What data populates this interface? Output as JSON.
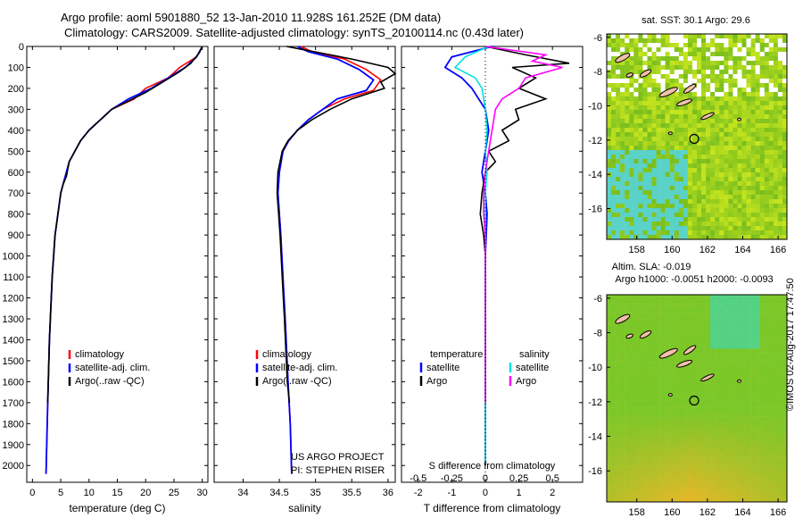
{
  "header": {
    "title_line1": "Argo profile: aoml 5901880_52 13-Jan-2010 11.928S 161.252E (DM data)",
    "title_line2": "Climatology: CARS2009. Satellite-adjusted climatology: synTS_20100114.nc (0.43d later)"
  },
  "colors": {
    "climatology": "#ff0000",
    "satellite": "#0000ff",
    "argo": "#000000",
    "sat_s": "#00e0e0",
    "argo_s": "#ff00ff"
  },
  "chart_data": [
    {
      "type": "line",
      "title": "",
      "xlabel": "temperature (deg C)",
      "ylabel": "",
      "xlim": [
        -1,
        31
      ],
      "ylim": [
        2080,
        0
      ],
      "x_ticks": [
        0,
        5,
        10,
        15,
        20,
        25,
        30
      ],
      "y_ticks": [
        0,
        100,
        200,
        300,
        400,
        500,
        600,
        700,
        800,
        900,
        1000,
        1100,
        1200,
        1300,
        1400,
        1500,
        1600,
        1700,
        1800,
        1900,
        2000
      ],
      "legend": [
        "climatology",
        "satellite-adj. clim.",
        "Argo(..raw -QC)"
      ],
      "series": [
        {
          "name": "climatology",
          "color": "#ff0000",
          "points": [
            [
              30,
              0
            ],
            [
              29,
              50
            ],
            [
              26,
              100
            ],
            [
              24,
              150
            ],
            [
              20,
              200
            ],
            [
              18,
              250
            ],
            [
              14,
              300
            ],
            [
              12,
              350
            ],
            [
              10,
              400
            ],
            [
              8.5,
              450
            ],
            [
              7.5,
              500
            ],
            [
              6.5,
              550
            ],
            [
              6,
              600
            ],
            [
              5.5,
              650
            ],
            [
              5,
              700
            ],
            [
              4.5,
              800
            ],
            [
              4,
              900
            ],
            [
              3.5,
              1100
            ],
            [
              3,
              1400
            ],
            [
              2.7,
              1700
            ],
            [
              2.4,
              2040
            ]
          ]
        },
        {
          "name": "satellite-adj. clim.",
          "color": "#0000ff",
          "points": [
            [
              30,
              0
            ],
            [
              29,
              50
            ],
            [
              27,
              100
            ],
            [
              24,
              150
            ],
            [
              21,
              200
            ],
            [
              17,
              250
            ],
            [
              14,
              300
            ],
            [
              12,
              350
            ],
            [
              10,
              400
            ],
            [
              8.5,
              450
            ],
            [
              7.5,
              500
            ],
            [
              6.5,
              550
            ],
            [
              6,
              600
            ],
            [
              5.5,
              650
            ],
            [
              5,
              700
            ],
            [
              4.5,
              800
            ],
            [
              4,
              900
            ],
            [
              3.5,
              1100
            ],
            [
              3,
              1400
            ],
            [
              2.7,
              1700
            ],
            [
              2.4,
              2040
            ]
          ]
        },
        {
          "name": "Argo(..raw -QC)",
          "color": "#000000",
          "points": [
            [
              30,
              0
            ],
            [
              29.5,
              30
            ],
            [
              28,
              80
            ],
            [
              26,
              120
            ],
            [
              23,
              170
            ],
            [
              20,
              220
            ],
            [
              17,
              260
            ],
            [
              14,
              300
            ],
            [
              12,
              350
            ],
            [
              10,
              400
            ],
            [
              8.5,
              450
            ],
            [
              7.5,
              500
            ],
            [
              6.5,
              550
            ],
            [
              6,
              620
            ],
            [
              5.4,
              660
            ],
            [
              5,
              700
            ],
            [
              4.5,
              800
            ],
            [
              4,
              900
            ],
            [
              3.5,
              1100
            ],
            [
              3,
              1400
            ],
            [
              2.7,
              1700
            ]
          ]
        }
      ]
    },
    {
      "type": "line",
      "title": "",
      "xlabel": "salinity",
      "ylabel": "",
      "xlim": [
        33.6,
        36.1
      ],
      "ylim": [
        2080,
        0
      ],
      "x_ticks": [
        34,
        34.5,
        35,
        35.5,
        36
      ],
      "legend": [
        "climatology",
        "satellite-adj. clim.",
        "Argo(..raw -QC)"
      ],
      "annotation": [
        "US ARGO PROJECT",
        "PI: STEPHEN RISER"
      ],
      "series": [
        {
          "name": "climatology",
          "color": "#ff0000",
          "points": [
            [
              34.8,
              0
            ],
            [
              34.95,
              25
            ],
            [
              35.4,
              60
            ],
            [
              35.7,
              110
            ],
            [
              35.9,
              160
            ],
            [
              35.8,
              210
            ],
            [
              35.4,
              250
            ],
            [
              35.1,
              300
            ],
            [
              34.9,
              350
            ],
            [
              34.75,
              400
            ],
            [
              34.63,
              450
            ],
            [
              34.55,
              500
            ],
            [
              34.5,
              600
            ],
            [
              34.48,
              700
            ],
            [
              34.5,
              800
            ],
            [
              34.52,
              900
            ],
            [
              34.55,
              1100
            ],
            [
              34.58,
              1300
            ],
            [
              34.62,
              1600
            ],
            [
              34.65,
              1800
            ],
            [
              34.67,
              2040
            ]
          ]
        },
        {
          "name": "satellite-adj. clim.",
          "color": "#0000ff",
          "points": [
            [
              34.75,
              0
            ],
            [
              34.9,
              25
            ],
            [
              35.3,
              60
            ],
            [
              35.6,
              110
            ],
            [
              35.8,
              160
            ],
            [
              35.7,
              210
            ],
            [
              35.3,
              250
            ],
            [
              35.1,
              300
            ],
            [
              34.9,
              350
            ],
            [
              34.75,
              400
            ],
            [
              34.63,
              450
            ],
            [
              34.55,
              500
            ],
            [
              34.5,
              600
            ],
            [
              34.48,
              700
            ],
            [
              34.5,
              800
            ],
            [
              34.52,
              900
            ],
            [
              34.55,
              1100
            ],
            [
              34.58,
              1300
            ],
            [
              34.62,
              1600
            ],
            [
              34.65,
              1800
            ],
            [
              34.67,
              2040
            ]
          ]
        },
        {
          "name": "Argo(..raw -QC)",
          "color": "#000000",
          "points": [
            [
              34.6,
              0
            ],
            [
              34.9,
              20
            ],
            [
              35.5,
              60
            ],
            [
              36,
              100
            ],
            [
              36.1,
              130
            ],
            [
              35.9,
              170
            ],
            [
              35.95,
              200
            ],
            [
              35.5,
              250
            ],
            [
              35.2,
              300
            ],
            [
              34.95,
              350
            ],
            [
              34.75,
              400
            ],
            [
              34.62,
              450
            ],
            [
              34.54,
              500
            ],
            [
              34.48,
              600
            ],
            [
              34.47,
              700
            ],
            [
              34.49,
              800
            ],
            [
              34.51,
              900
            ],
            [
              34.54,
              1100
            ],
            [
              34.57,
              1300
            ],
            [
              34.61,
              1600
            ],
            [
              34.64,
              1700
            ]
          ]
        }
      ]
    },
    {
      "type": "line",
      "title": "",
      "xlabel": "T difference from climatology",
      "xlabel2": "S difference from climatology",
      "ylabel": "",
      "xlim": [
        -2.5,
        2.9
      ],
      "ylim": [
        2080,
        0
      ],
      "x_ticks_bottom": [
        -2,
        -1,
        0,
        1,
        2
      ],
      "x_ticks_top": [
        "-0.5",
        "-0.25",
        "0",
        "0.25",
        "0.5"
      ],
      "legend_headers": [
        "temperature",
        "salinity"
      ],
      "legend": [
        "satellite",
        "Argo",
        "satellite",
        "Argo"
      ],
      "series": [
        {
          "name": "satellite",
          "color": "#0000ff",
          "points": [
            [
              0.2,
              0
            ],
            [
              -1,
              50
            ],
            [
              -1.2,
              100
            ],
            [
              -0.7,
              150
            ],
            [
              -0.4,
              200
            ],
            [
              0,
              300
            ],
            [
              0.1,
              400
            ],
            [
              0,
              500
            ],
            [
              -0.1,
              600
            ],
            [
              0,
              700
            ],
            [
              0.05,
              800
            ],
            [
              0,
              1000
            ],
            [
              0,
              1500
            ],
            [
              0,
              2000
            ]
          ]
        },
        {
          "name": "Argo",
          "color": "#000000",
          "points": [
            [
              0,
              0
            ],
            [
              1.2,
              40
            ],
            [
              2.5,
              80
            ],
            [
              0.8,
              100
            ],
            [
              1.5,
              150
            ],
            [
              1,
              200
            ],
            [
              1.8,
              250
            ],
            [
              0.9,
              300
            ],
            [
              1,
              350
            ],
            [
              0.5,
              400
            ],
            [
              0.7,
              450
            ],
            [
              0.1,
              500
            ],
            [
              0.3,
              550
            ],
            [
              0,
              600
            ],
            [
              -0.1,
              700
            ],
            [
              -0.15,
              800
            ],
            [
              -0.05,
              900
            ],
            [
              0,
              1000
            ],
            [
              0,
              1500
            ],
            [
              0,
              1700
            ]
          ]
        },
        {
          "name": "satellite",
          "color": "#00e0e0",
          "points": [
            [
              0.1,
              0
            ],
            [
              -0.6,
              50
            ],
            [
              -0.9,
              100
            ],
            [
              -0.3,
              150
            ],
            [
              -0.1,
              200
            ],
            [
              0,
              300
            ],
            [
              0.05,
              400
            ],
            [
              0,
              500
            ],
            [
              0.05,
              600
            ],
            [
              0,
              700
            ],
            [
              0,
              1000
            ],
            [
              0,
              1500
            ],
            [
              0,
              2000
            ]
          ]
        },
        {
          "name": "Argo",
          "color": "#ff00ff",
          "points": [
            [
              0,
              0
            ],
            [
              1.8,
              40
            ],
            [
              1.4,
              70
            ],
            [
              2.3,
              100
            ],
            [
              1.2,
              150
            ],
            [
              1,
              200
            ],
            [
              0.5,
              250
            ],
            [
              0.3,
              300
            ],
            [
              0.2,
              400
            ],
            [
              0.1,
              500
            ],
            [
              0,
              600
            ],
            [
              -0.05,
              700
            ],
            [
              -0.05,
              800
            ],
            [
              0,
              900
            ],
            [
              0,
              1000
            ],
            [
              0,
              1500
            ],
            [
              0,
              1700
            ]
          ]
        }
      ]
    }
  ],
  "maps": [
    {
      "title": "sat. SST: 30.1  Argo: 29.6",
      "lon_ticks": [
        158,
        160,
        162,
        164,
        166
      ],
      "lat_ticks": [
        -6,
        -8,
        -10,
        -12,
        -14,
        -16
      ],
      "lon_range": [
        156.3,
        166.5
      ],
      "lat_range": [
        -17.8,
        -5.8
      ],
      "marker": [
        161.25,
        -11.93
      ]
    },
    {
      "title1": "Altim. SLA: -0.019",
      "title2": "Argo h1000: -0.0051  h2000: -0.0093",
      "lon_ticks": [
        158,
        160,
        162,
        164,
        166
      ],
      "lat_ticks": [
        -6,
        -8,
        -10,
        -12,
        -14,
        -16
      ],
      "lon_range": [
        156.3,
        166.5
      ],
      "lat_range": [
        -17.8,
        -5.8
      ],
      "marker": [
        161.25,
        -11.93
      ]
    }
  ],
  "footer": {
    "stamp": "©IMOS 02-Aug-2017 17:47:50"
  }
}
